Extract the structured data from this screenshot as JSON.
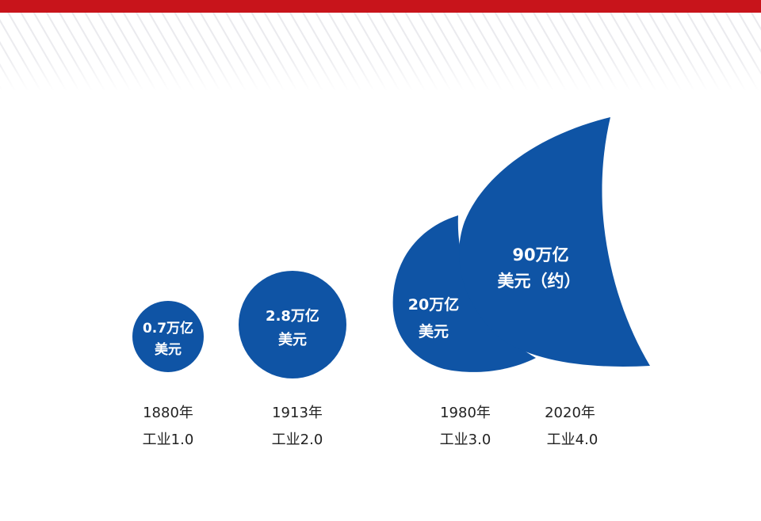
{
  "colors": {
    "header_bar": "#c8141b",
    "shape_fill": "#0f54a5",
    "shape_text": "#ffffff",
    "label_text": "#222222"
  },
  "stages": [
    {
      "value_line1": "0.7万亿",
      "value_line2": "美元",
      "year": "1880年",
      "era": "工业1.0"
    },
    {
      "value_line1": "2.8万亿",
      "value_line2": "美元",
      "year": "1913年",
      "era": "工业2.0"
    },
    {
      "value_line1": "20万亿",
      "value_line2": "美元",
      "year": "1980年",
      "era": "工业3.0"
    },
    {
      "value_line1": "90万亿",
      "value_line2": "美元（约）",
      "year": "2020年",
      "era": "工业4.0"
    }
  ]
}
